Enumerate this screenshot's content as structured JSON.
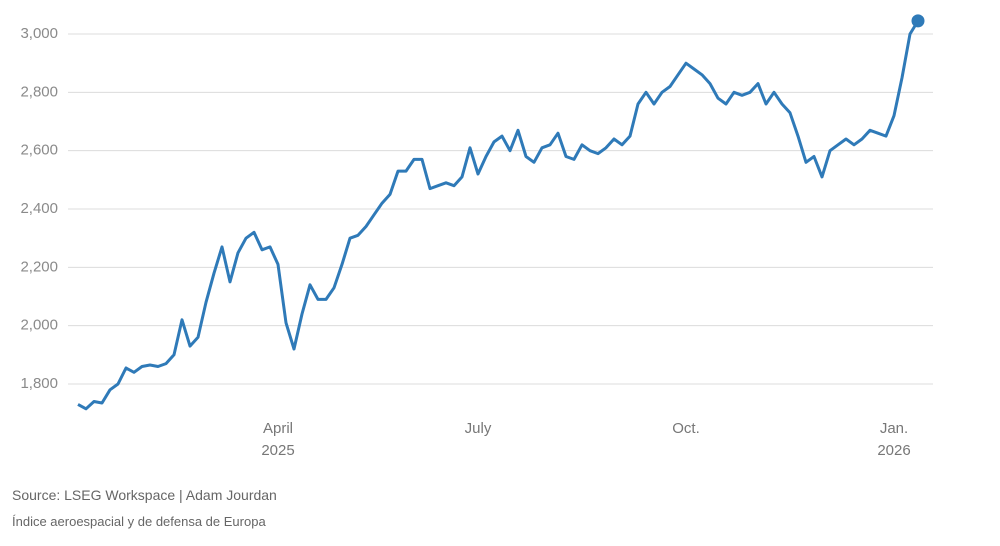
{
  "chart_data": {
    "type": "line",
    "source": "Source: LSEG Workspace | Adam Jourdan",
    "note": "Índice aeroespacial y de defensa de Europa",
    "categories": [
      null,
      null,
      null,
      null,
      null,
      null,
      null,
      null,
      null,
      null,
      null,
      null,
      null,
      null,
      null,
      null,
      null,
      null,
      null,
      null,
      null,
      null,
      null,
      null,
      null,
      "April 2025",
      null,
      null,
      null,
      null,
      null,
      null,
      null,
      null,
      null,
      null,
      null,
      null,
      null,
      null,
      null,
      null,
      null,
      null,
      null,
      null,
      null,
      null,
      null,
      null,
      "July",
      null,
      null,
      null,
      null,
      null,
      null,
      null,
      null,
      null,
      null,
      null,
      null,
      null,
      null,
      null,
      null,
      null,
      null,
      null,
      null,
      null,
      null,
      null,
      null,
      null,
      "Oct.",
      null,
      null,
      null,
      null,
      null,
      null,
      null,
      null,
      null,
      null,
      null,
      null,
      null,
      null,
      null,
      null,
      null,
      null,
      null,
      null,
      null,
      null,
      null,
      null,
      null,
      "Jan. 2026",
      null,
      null,
      null
    ],
    "series": [
      {
        "color": "#2f7ab8",
        "values": [
          1730,
          1715,
          1740,
          1735,
          1780,
          1800,
          1855,
          1840,
          1860,
          1865,
          1860,
          1870,
          1900,
          2020,
          1930,
          1960,
          2080,
          2180,
          2270,
          2150,
          2250,
          2300,
          2320,
          2260,
          2270,
          2210,
          2010,
          1920,
          2040,
          2140,
          2090,
          2090,
          2130,
          2210,
          2300,
          2310,
          2340,
          2380,
          2420,
          2450,
          2530,
          2530,
          2570,
          2570,
          2470,
          2480,
          2490,
          2480,
          2510,
          2610,
          2520,
          2580,
          2630,
          2650,
          2600,
          2670,
          2580,
          2560,
          2610,
          2620,
          2660,
          2580,
          2570,
          2620,
          2600,
          2590,
          2610,
          2640,
          2620,
          2650,
          2760,
          2800,
          2760,
          2800,
          2820,
          2860,
          2900,
          2880,
          2860,
          2830,
          2780,
          2760,
          2800,
          2790,
          2800,
          2830,
          2760,
          2800,
          2760,
          2730,
          2650,
          2560,
          2580,
          2510,
          2600,
          2620,
          2640,
          2620,
          2640,
          2670,
          2660,
          2650,
          2720,
          2850,
          3000,
          3045
        ]
      }
    ],
    "ylim": [
      1700,
      3060
    ],
    "yticks": [
      {
        "value": 1800,
        "label": "1,800"
      },
      {
        "value": 2000,
        "label": "2,000"
      },
      {
        "value": 2200,
        "label": "2,200"
      },
      {
        "value": 2400,
        "label": "2,400"
      },
      {
        "value": 2600,
        "label": "2,600"
      },
      {
        "value": 2800,
        "label": "2,800"
      },
      {
        "value": 3000,
        "label": "3,000"
      }
    ],
    "grid": true,
    "last_point_marker": true
  }
}
